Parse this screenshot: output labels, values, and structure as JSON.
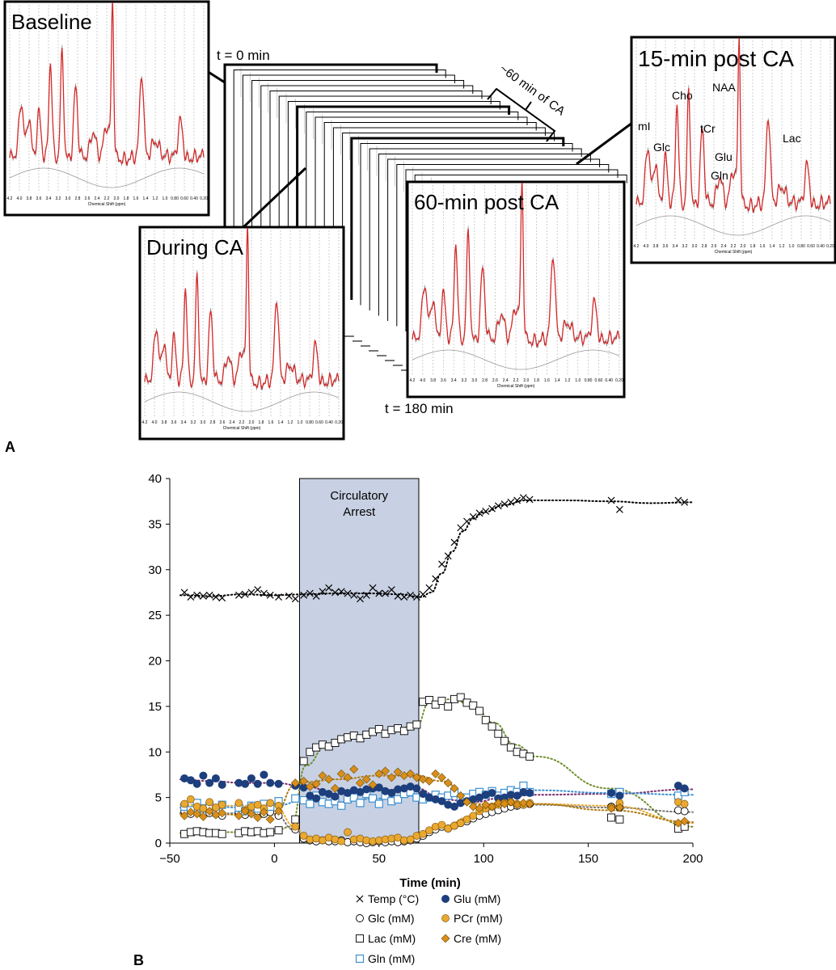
{
  "panel_a": {
    "label": "A",
    "t_start": "t = 0 min",
    "t_end": "t = 180 min",
    "ca_duration": "~60 min of CA",
    "spectra": [
      {
        "title": "Baseline"
      },
      {
        "title": "During CA"
      },
      {
        "title": "60-min post CA"
      },
      {
        "title": "15-min post CA",
        "peaks": [
          "mI",
          "Glc",
          "Cho",
          "tCr",
          "NAA",
          "Glu",
          "Gln",
          "Lac"
        ]
      }
    ],
    "spectrum_xaxis_label": "Chemical Shift (ppm)",
    "spectrum_ticks": [
      "4.2",
      "4.0",
      "3.8",
      "3.6",
      "3.4",
      "3.2",
      "3.0",
      "2.8",
      "2.6",
      "2.4",
      "2.2",
      "2.0",
      "1.8",
      "1.6",
      "1.4",
      "1.2",
      "1.0",
      "0.80",
      "0.60",
      "0.40",
      "0.20"
    ]
  },
  "panel_b": {
    "label": "B",
    "shaded_label_1": "Circulatory",
    "shaded_label_2": "Arrest"
  },
  "colors": {
    "spectrum": "#d32a2a",
    "shade": "#c8d1e3",
    "glu": "#1d3f7d",
    "pcr": "#e9a930",
    "cre": "#d98e1c",
    "gln": "#3d8fcf",
    "lac_line": "#6f8f2e",
    "glc_line": "#777777"
  },
  "chart_data": {
    "type": "scatter",
    "xlabel": "Time (min)",
    "ylabel": "",
    "xlim": [
      -50,
      200
    ],
    "ylim": [
      0,
      40
    ],
    "xticks": [
      -50,
      0,
      50,
      100,
      150,
      200
    ],
    "yticks": [
      0,
      5,
      10,
      15,
      20,
      25,
      30,
      35,
      40
    ],
    "shaded_region": [
      12,
      69
    ],
    "grid": false,
    "legend_position": "bottom",
    "series": [
      {
        "name": "Temp (°C)",
        "marker": "x",
        "x": [
          -43,
          -40,
          -37,
          -34,
          -31,
          -28,
          -25,
          -17,
          -14,
          -11,
          -8,
          -5,
          -2,
          2,
          7,
          10,
          14,
          17,
          20,
          23,
          26,
          29,
          32,
          35,
          38,
          41,
          44,
          47,
          50,
          53,
          56,
          59,
          62,
          65,
          68,
          71,
          74,
          77,
          80,
          83,
          86,
          89,
          92,
          95,
          98,
          101,
          104,
          107,
          110,
          113,
          116,
          119,
          122,
          161,
          165,
          193,
          196
        ],
        "y": [
          27.5,
          27.0,
          27.2,
          27.1,
          27.2,
          27.0,
          26.9,
          27.2,
          27.3,
          27.5,
          27.8,
          27.4,
          27.2,
          27.0,
          27.1,
          26.8,
          27.2,
          27.4,
          27.1,
          27.6,
          28.0,
          27.5,
          27.6,
          27.4,
          27.2,
          26.8,
          27.2,
          28.0,
          27.4,
          27.4,
          27.8,
          27.1,
          27.0,
          27.2,
          27.0,
          27.3,
          28.0,
          29.0,
          30.6,
          31.5,
          33.0,
          34.6,
          35.3,
          35.8,
          36.2,
          36.4,
          36.7,
          37.0,
          37.2,
          37.4,
          37.6,
          37.9,
          37.7,
          37.6,
          36.6,
          37.6,
          37.4
        ]
      },
      {
        "name": "Glc (mM)",
        "marker": "open-circle",
        "x": [
          -43,
          -40,
          -37,
          -34,
          -31,
          -28,
          -25,
          -17,
          -14,
          -11,
          -8,
          -5,
          -2,
          2,
          10,
          14,
          17,
          20,
          23,
          26,
          29,
          32,
          35,
          38,
          41,
          44,
          47,
          50,
          53,
          56,
          59,
          62,
          65,
          68,
          71,
          74,
          77,
          80,
          83,
          86,
          89,
          92,
          95,
          98,
          101,
          104,
          107,
          110,
          113,
          116,
          119,
          122,
          161,
          165,
          193,
          196
        ],
        "y": [
          3.5,
          3.2,
          3.4,
          3.1,
          3.3,
          3.2,
          3.0,
          3.4,
          3.1,
          3.3,
          3.5,
          3.2,
          3.4,
          3.0,
          1.5,
          0.5,
          0.3,
          0.2,
          0.3,
          0.2,
          0.2,
          0.3,
          0.1,
          0.2,
          0.1,
          0.0,
          0.1,
          0.2,
          0.1,
          0.2,
          0.1,
          0.2,
          0.3,
          0.5,
          0.8,
          1.2,
          1.5,
          1.8,
          1.6,
          1.9,
          2.2,
          2.4,
          2.7,
          3.0,
          3.2,
          3.4,
          3.6,
          3.8,
          4.0,
          4.1,
          4.2,
          4.3,
          4.0,
          3.9,
          3.6,
          3.5
        ]
      },
      {
        "name": "Lac (mM)",
        "marker": "open-square",
        "x": [
          -43,
          -40,
          -37,
          -34,
          -31,
          -28,
          -25,
          -17,
          -14,
          -11,
          -8,
          -5,
          -2,
          2,
          10,
          14,
          17,
          20,
          23,
          26,
          29,
          32,
          35,
          38,
          41,
          44,
          47,
          50,
          53,
          56,
          59,
          62,
          65,
          68,
          71,
          74,
          77,
          80,
          83,
          86,
          89,
          92,
          95,
          98,
          101,
          104,
          107,
          110,
          113,
          116,
          119,
          122,
          161,
          165,
          193,
          196
        ],
        "y": [
          1.0,
          1.2,
          1.3,
          1.2,
          1.1,
          1.1,
          1.0,
          1.1,
          1.3,
          1.2,
          1.3,
          1.1,
          1.2,
          1.4,
          2.6,
          9.0,
          10.0,
          10.5,
          10.8,
          10.6,
          11.0,
          11.4,
          11.6,
          11.8,
          11.5,
          11.9,
          12.2,
          12.5,
          12.0,
          12.4,
          12.6,
          12.3,
          12.8,
          13.0,
          15.5,
          15.7,
          15.2,
          15.6,
          15.0,
          15.8,
          16.0,
          15.4,
          15.1,
          14.5,
          13.5,
          12.8,
          12.0,
          11.2,
          10.5,
          10.0,
          9.8,
          9.5,
          2.8,
          2.6,
          1.6,
          1.8
        ]
      },
      {
        "name": "Gln (mM)",
        "marker": "open-square-blue",
        "x": [
          -43,
          -40,
          -37,
          -34,
          -31,
          -28,
          -25,
          -17,
          -14,
          -11,
          -8,
          -5,
          -2,
          2,
          10,
          14,
          17,
          20,
          23,
          26,
          29,
          32,
          35,
          38,
          41,
          44,
          47,
          50,
          53,
          56,
          59,
          62,
          65,
          68,
          71,
          74,
          77,
          80,
          83,
          86,
          89,
          92,
          95,
          98,
          101,
          104,
          107,
          110,
          113,
          116,
          119,
          122,
          161,
          165,
          193,
          196
        ],
        "y": [
          4.0,
          3.6,
          4.4,
          3.8,
          4.0,
          3.7,
          4.2,
          3.9,
          3.5,
          4.1,
          3.8,
          4.3,
          4.0,
          4.6,
          4.9,
          4.7,
          4.3,
          5.2,
          4.5,
          4.3,
          4.6,
          4.1,
          4.8,
          5.0,
          4.4,
          5.4,
          4.9,
          4.3,
          5.2,
          4.6,
          4.8,
          5.4,
          5.6,
          5.0,
          4.8,
          5.0,
          5.3,
          5.0,
          5.2,
          5.5,
          4.8,
          5.0,
          5.4,
          5.6,
          5.3,
          5.7,
          5.2,
          5.5,
          5.8,
          5.6,
          6.3,
          5.6,
          5.4,
          5.6,
          5.2,
          5.6
        ]
      },
      {
        "name": "Glu (mM)",
        "marker": "filled-circle-navy",
        "x": [
          -43,
          -40,
          -37,
          -34,
          -31,
          -28,
          -25,
          -17,
          -14,
          -11,
          -8,
          -5,
          -2,
          2,
          10,
          14,
          17,
          20,
          23,
          26,
          29,
          32,
          35,
          38,
          41,
          44,
          47,
          50,
          53,
          56,
          59,
          62,
          65,
          68,
          71,
          74,
          77,
          80,
          83,
          86,
          89,
          92,
          95,
          98,
          101,
          104,
          107,
          110,
          113,
          116,
          119,
          122,
          161,
          165,
          193,
          196
        ],
        "y": [
          7.1,
          6.9,
          6.5,
          7.4,
          6.6,
          7.1,
          6.4,
          6.6,
          6.5,
          7.1,
          6.5,
          7.5,
          6.6,
          6.5,
          6.3,
          6.1,
          5.2,
          4.9,
          5.6,
          5.4,
          5.1,
          5.7,
          5.5,
          5.8,
          5.6,
          5.9,
          6.0,
          6.1,
          5.7,
          5.5,
          5.9,
          6.0,
          6.2,
          6.0,
          5.4,
          5.0,
          4.8,
          4.6,
          4.2,
          4.0,
          4.4,
          4.6,
          4.8,
          5.0,
          5.3,
          5.5,
          4.9,
          5.0,
          5.3,
          5.2,
          5.6,
          5.5,
          5.5,
          5.2,
          6.3,
          6.0
        ]
      },
      {
        "name": "PCr (mM)",
        "marker": "filled-circle-orange",
        "x": [
          -43,
          -40,
          -37,
          -34,
          -31,
          -28,
          -25,
          -17,
          -14,
          -11,
          -8,
          -5,
          -2,
          2,
          10,
          14,
          17,
          20,
          23,
          26,
          29,
          32,
          35,
          38,
          41,
          44,
          47,
          50,
          53,
          56,
          59,
          62,
          65,
          68,
          71,
          74,
          77,
          80,
          83,
          86,
          89,
          92,
          95,
          98,
          101,
          104,
          107,
          110,
          113,
          116,
          119,
          122,
          161,
          165,
          193,
          196
        ],
        "y": [
          4.3,
          4.8,
          4.0,
          3.8,
          4.5,
          3.9,
          4.2,
          4.4,
          3.6,
          4.0,
          4.2,
          3.8,
          4.4,
          4.1,
          1.8,
          0.8,
          0.4,
          0.5,
          0.3,
          0.6,
          0.4,
          0.2,
          1.2,
          0.4,
          0.5,
          0.3,
          0.2,
          0.3,
          0.4,
          0.5,
          0.6,
          0.3,
          0.4,
          0.8,
          1.0,
          1.4,
          1.8,
          2.0,
          1.6,
          1.9,
          2.2,
          2.6,
          3.0,
          3.5,
          3.8,
          4.0,
          4.2,
          4.4,
          4.5,
          4.3,
          4.2,
          4.4,
          3.9,
          4.4,
          4.5,
          4.3
        ]
      },
      {
        "name": "Cre (mM)",
        "marker": "diamond-orange",
        "x": [
          -43,
          -40,
          -37,
          -34,
          -31,
          -28,
          -25,
          -17,
          -14,
          -11,
          -8,
          -5,
          -2,
          2,
          10,
          14,
          17,
          20,
          23,
          26,
          29,
          32,
          35,
          38,
          41,
          44,
          47,
          50,
          53,
          56,
          59,
          62,
          65,
          68,
          71,
          74,
          77,
          80,
          83,
          86,
          89,
          92,
          95,
          98,
          101,
          104,
          107,
          110,
          113,
          116,
          119,
          122,
          161,
          165,
          193,
          196
        ],
        "y": [
          3.0,
          3.4,
          3.2,
          2.9,
          3.5,
          3.1,
          3.3,
          3.0,
          3.5,
          3.2,
          2.8,
          3.4,
          2.6,
          3.5,
          6.6,
          6.8,
          6.2,
          6.5,
          7.4,
          7.0,
          6.0,
          7.6,
          7.2,
          8.1,
          6.6,
          7.0,
          6.4,
          7.6,
          7.9,
          7.2,
          7.8,
          7.4,
          7.6,
          7.2,
          7.0,
          6.8,
          7.6,
          7.2,
          6.6,
          6.0,
          5.2,
          4.5,
          4.0,
          3.8,
          4.2,
          4.0,
          4.4,
          4.3,
          4.5,
          4.2,
          4.4,
          4.3,
          3.8,
          3.9,
          2.2,
          2.4
        ]
      }
    ],
    "fits": [
      {
        "series": "Temp (°C)",
        "color": "#000000",
        "x": [
          -45,
          -30,
          -15,
          0,
          15,
          30,
          45,
          60,
          70,
          75,
          80,
          85,
          90,
          95,
          100,
          110,
          120,
          140,
          160,
          180,
          200
        ],
        "y": [
          27.2,
          27.1,
          27.3,
          27.2,
          27.3,
          27.4,
          27.4,
          27.3,
          27.0,
          27.5,
          29.6,
          32.0,
          34.2,
          35.6,
          36.3,
          37.1,
          37.6,
          37.6,
          37.5,
          37.3,
          37.4
        ]
      },
      {
        "series": "Lac (mM)",
        "color": "#6f8f2e",
        "x": [
          -45,
          -30,
          -15,
          0,
          8,
          15,
          25,
          40,
          55,
          68,
          74,
          85,
          95,
          105,
          115,
          125,
          160,
          200
        ],
        "y": [
          1.1,
          1.2,
          1.2,
          1.3,
          1.8,
          8.5,
          10.7,
          11.6,
          12.3,
          12.9,
          15.4,
          15.8,
          15.0,
          13.2,
          10.8,
          9.5,
          6.0,
          1.8
        ]
      },
      {
        "series": "Glc (mM)",
        "color": "#777777",
        "x": [
          -45,
          -30,
          -15,
          0,
          10,
          15,
          30,
          50,
          68,
          80,
          95,
          110,
          125,
          160,
          200
        ],
        "y": [
          3.3,
          3.2,
          3.3,
          3.2,
          1.4,
          0.4,
          0.2,
          0.1,
          0.4,
          1.7,
          2.8,
          3.8,
          4.2,
          3.9,
          3.4
        ]
      },
      {
        "series": "Glu (mM)",
        "color": "#7a2a6a",
        "x": [
          -45,
          -30,
          -15,
          0,
          15,
          30,
          50,
          68,
          80,
          95,
          110,
          125,
          160,
          200
        ],
        "y": [
          7.0,
          6.8,
          6.6,
          6.6,
          6.2,
          5.4,
          5.8,
          6.0,
          4.8,
          4.5,
          5.0,
          5.3,
          5.4,
          5.9
        ]
      },
      {
        "series": "Gln (mM)",
        "color": "#3d8fcf",
        "x": [
          -45,
          -30,
          -15,
          0,
          15,
          30,
          50,
          68,
          80,
          95,
          110,
          125,
          160,
          200
        ],
        "y": [
          3.9,
          4.0,
          3.9,
          4.1,
          4.7,
          4.5,
          4.9,
          5.2,
          5.1,
          5.2,
          5.5,
          5.8,
          5.5,
          5.3
        ]
      },
      {
        "series": "PCr (mM)",
        "color": "#e9a930",
        "x": [
          -45,
          -30,
          -15,
          0,
          10,
          15,
          30,
          50,
          68,
          80,
          95,
          110,
          125,
          160,
          200
        ],
        "y": [
          4.2,
          4.1,
          4.1,
          4.1,
          1.8,
          0.6,
          0.4,
          0.3,
          0.6,
          1.8,
          3.0,
          4.2,
          4.3,
          4.1,
          2.2
        ]
      },
      {
        "series": "Cre (mM)",
        "color": "#b07a10",
        "x": [
          -45,
          -30,
          -15,
          0,
          10,
          15,
          30,
          50,
          68,
          80,
          95,
          110,
          125,
          160,
          200
        ],
        "y": [
          3.2,
          3.2,
          3.1,
          3.1,
          6.4,
          6.7,
          7.0,
          7.4,
          7.4,
          6.8,
          4.3,
          4.2,
          4.3,
          3.6,
          2.3
        ]
      }
    ]
  }
}
